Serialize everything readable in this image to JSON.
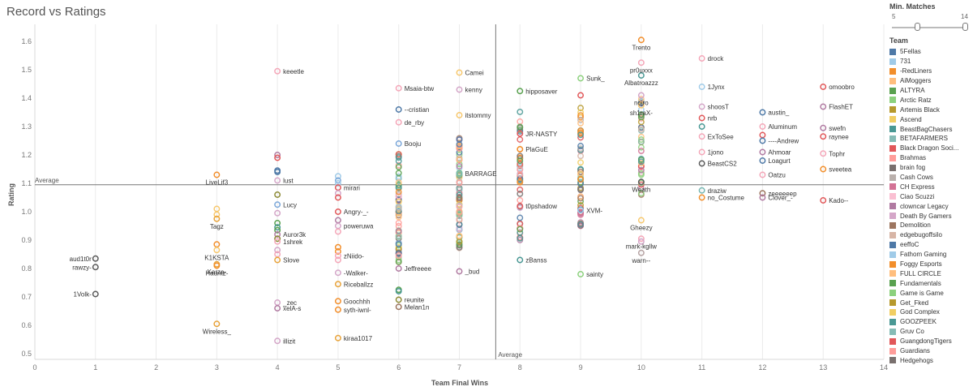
{
  "chart_data": {
    "type": "scatter",
    "title": "Record vs Ratings",
    "xlabel": "Team Final Wins",
    "ylabel": "Rating",
    "xlim": [
      0,
      14
    ],
    "ylim": [
      0.48,
      1.66
    ],
    "x_ticks": [
      "0",
      "1",
      "2",
      "3",
      "4",
      "5",
      "6",
      "7",
      "8",
      "9",
      "10",
      "11",
      "12",
      "13",
      "14"
    ],
    "y_ticks": [
      "0.5",
      "0.6",
      "0.7",
      "0.8",
      "0.9",
      "1.0",
      "1.1",
      "1.2",
      "1.3",
      "1.4",
      "1.5",
      "1.6"
    ],
    "reference_lines": [
      {
        "axis": "y",
        "value": 1.095,
        "label": "Average"
      },
      {
        "axis": "x",
        "value": 7.6,
        "label": "Average"
      }
    ],
    "grid": "vertical",
    "legend_position": "right",
    "labeled_points": [
      {
        "x": 1,
        "y": 0.835,
        "label": "aud1t0r",
        "color": "#5a5a5a"
      },
      {
        "x": 1,
        "y": 0.805,
        "label": "rawzy-",
        "color": "#5a5a5a"
      },
      {
        "x": 1,
        "y": 0.71,
        "label": "1Volk-",
        "color": "#5a5a5a"
      },
      {
        "x": 3,
        "y": 1.13,
        "label": "LiveLif3",
        "color": "#f28e2b"
      },
      {
        "x": 3,
        "y": 1.01,
        "label": "",
        "color": "#f7c86e"
      },
      {
        "x": 3,
        "y": 0.99,
        "label": "",
        "color": "#f7c86e"
      },
      {
        "x": 3,
        "y": 0.975,
        "label": "Tagz",
        "color": "#e8a33a"
      },
      {
        "x": 3,
        "y": 0.885,
        "label": "",
        "color": "#f28e2b"
      },
      {
        "x": 3,
        "y": 0.865,
        "label": "K1KSTA",
        "color": "#f7c86e"
      },
      {
        "x": 3,
        "y": 0.815,
        "label": "Karza-",
        "color": "#e8a33a"
      },
      {
        "x": 3,
        "y": 0.81,
        "label": "Hauntz-",
        "color": "#f28e2b"
      },
      {
        "x": 3,
        "y": 0.605,
        "label": "Wireless_",
        "color": "#e8a33a"
      },
      {
        "x": 4,
        "y": 1.495,
        "label": "keeetle",
        "color": "#f4a6b8"
      },
      {
        "x": 4,
        "y": 1.2,
        "label": "",
        "color": "#b07aa1"
      },
      {
        "x": 4,
        "y": 1.19,
        "label": "",
        "color": "#e15759"
      },
      {
        "x": 4,
        "y": 1.145,
        "label": "",
        "color": "#4e79a7"
      },
      {
        "x": 4,
        "y": 1.14,
        "label": "",
        "color": "#4e79a7"
      },
      {
        "x": 4,
        "y": 1.11,
        "label": "lust",
        "color": "#d4a6c8"
      },
      {
        "x": 4,
        "y": 1.06,
        "label": "",
        "color": "#8c8a35"
      },
      {
        "x": 4,
        "y": 1.025,
        "label": "Lucy",
        "color": "#7ba7d9"
      },
      {
        "x": 4,
        "y": 0.995,
        "label": "",
        "color": "#d4a6c8"
      },
      {
        "x": 4,
        "y": 0.96,
        "label": "",
        "color": "#59a14f"
      },
      {
        "x": 4,
        "y": 0.945,
        "label": "",
        "color": "#499894"
      },
      {
        "x": 4,
        "y": 0.935,
        "label": "",
        "color": "#59a14f"
      },
      {
        "x": 4,
        "y": 0.92,
        "label": "Auror3k",
        "color": "#b07aa1"
      },
      {
        "x": 4,
        "y": 0.905,
        "label": "",
        "color": "#8c8a35"
      },
      {
        "x": 4,
        "y": 0.895,
        "label": "1shrek",
        "color": "#f4a6b8"
      },
      {
        "x": 4,
        "y": 0.865,
        "label": "",
        "color": "#d4a6c8"
      },
      {
        "x": 4,
        "y": 0.85,
        "label": "",
        "color": "#f4a6b8"
      },
      {
        "x": 4,
        "y": 0.83,
        "label": "Slove",
        "color": "#e8a33a"
      },
      {
        "x": 4,
        "y": 0.68,
        "label": "_zec",
        "color": "#d4a6c8"
      },
      {
        "x": 4,
        "y": 0.66,
        "label": "xelA-s",
        "color": "#b07aa1"
      },
      {
        "x": 4,
        "y": 0.545,
        "label": "illizit",
        "color": "#d4a6c8"
      },
      {
        "x": 5,
        "y": 1.125,
        "label": "",
        "color": "#a0cbe8"
      },
      {
        "x": 5,
        "y": 1.11,
        "label": "",
        "color": "#7ba7d9"
      },
      {
        "x": 5,
        "y": 1.1,
        "label": "",
        "color": "#a0cbe8"
      },
      {
        "x": 5,
        "y": 1.085,
        "label": "mirari",
        "color": "#e15759"
      },
      {
        "x": 5,
        "y": 1.065,
        "label": "",
        "color": "#d4a6c8"
      },
      {
        "x": 5,
        "y": 1.05,
        "label": "",
        "color": "#e15759"
      },
      {
        "x": 5,
        "y": 1.0,
        "label": "Angry-_-",
        "color": "#e15759"
      },
      {
        "x": 5,
        "y": 0.97,
        "label": "",
        "color": "#b07aa1"
      },
      {
        "x": 5,
        "y": 0.95,
        "label": "poweruwa",
        "color": "#d4a6c8"
      },
      {
        "x": 5,
        "y": 0.93,
        "label": "",
        "color": "#f4a6b8"
      },
      {
        "x": 5,
        "y": 0.875,
        "label": "",
        "color": "#f28e2b"
      },
      {
        "x": 5,
        "y": 0.86,
        "label": "",
        "color": "#f28e2b"
      },
      {
        "x": 5,
        "y": 0.845,
        "label": "zNiido-",
        "color": "#f4a6b8"
      },
      {
        "x": 5,
        "y": 0.83,
        "label": "",
        "color": "#f4a6b8"
      },
      {
        "x": 5,
        "y": 0.785,
        "label": "-Walker-",
        "color": "#d4a6c8"
      },
      {
        "x": 5,
        "y": 0.745,
        "label": "Riceballzz",
        "color": "#e8a33a"
      },
      {
        "x": 5,
        "y": 0.685,
        "label": "Goochhh",
        "color": "#f28e2b"
      },
      {
        "x": 5,
        "y": 0.655,
        "label": "syth-iwnl-",
        "color": "#f28e2b"
      },
      {
        "x": 5,
        "y": 0.555,
        "label": "kiraa1017",
        "color": "#e8a33a"
      },
      {
        "x": 6,
        "y": 1.435,
        "label": "Msaia-btw",
        "color": "#f4a6b8"
      },
      {
        "x": 6,
        "y": 1.36,
        "label": "--cristian",
        "color": "#4e79a7"
      },
      {
        "x": 6,
        "y": 1.315,
        "label": "de_rby",
        "color": "#f4a6b8"
      },
      {
        "x": 6,
        "y": 1.24,
        "label": "Booju",
        "color": "#7ba7d9"
      },
      {
        "x": 6,
        "y": 0.8,
        "label": "Jeffreeee",
        "color": "#b07aa1"
      },
      {
        "x": 6,
        "y": 0.725,
        "label": "",
        "color": "#59a14f"
      },
      {
        "x": 6,
        "y": 0.72,
        "label": "",
        "color": "#499894"
      },
      {
        "x": 6,
        "y": 0.69,
        "label": "reunite",
        "color": "#8c8a35"
      },
      {
        "x": 6,
        "y": 0.665,
        "label": "Melan1n",
        "color": "#9c755f"
      },
      {
        "x": 7,
        "y": 1.49,
        "label": "Camei",
        "color": "#f7c86e"
      },
      {
        "x": 7,
        "y": 1.43,
        "label": "kenny",
        "color": "#d4a6c8"
      },
      {
        "x": 7,
        "y": 1.34,
        "label": "itstommy",
        "color": "#f7c86e"
      },
      {
        "x": 7,
        "y": 1.135,
        "label": "BARRAGE",
        "color": "#76b7b2"
      },
      {
        "x": 7,
        "y": 0.79,
        "label": "_bud",
        "color": "#b07aa1"
      },
      {
        "x": 8,
        "y": 1.425,
        "label": "hipposaver",
        "color": "#59a14f"
      },
      {
        "x": 8,
        "y": 1.275,
        "label": "JR-NASTY",
        "color": "#e15759"
      },
      {
        "x": 8,
        "y": 1.22,
        "label": "PlaGuE",
        "color": "#f28e2b"
      },
      {
        "x": 8,
        "y": 1.02,
        "label": "t0pshadow",
        "color": "#e15759"
      },
      {
        "x": 8,
        "y": 0.83,
        "label": "zBanss",
        "color": "#499894"
      },
      {
        "x": 9,
        "y": 1.47,
        "label": "Sunk_",
        "color": "#8cd17d"
      },
      {
        "x": 9,
        "y": 1.41,
        "label": "",
        "color": "#e15759"
      },
      {
        "x": 9,
        "y": 1.005,
        "label": "XVM-",
        "color": "#a0cbe8"
      },
      {
        "x": 9,
        "y": 0.78,
        "label": "sainty",
        "color": "#8cd17d"
      },
      {
        "x": 10,
        "y": 1.605,
        "label": "Trento",
        "color": "#f28e2b"
      },
      {
        "x": 10,
        "y": 1.525,
        "label": "pr0uxxx",
        "color": "#f4a6b8"
      },
      {
        "x": 10,
        "y": 1.48,
        "label": "Albatroazzz",
        "color": "#499894"
      },
      {
        "x": 10,
        "y": 1.41,
        "label": "nojro",
        "color": "#d4a6c8"
      },
      {
        "x": 10,
        "y": 1.375,
        "label": "sh1raX-",
        "color": "#f7c86e"
      },
      {
        "x": 10,
        "y": 1.105,
        "label": "Weath",
        "color": "#5a5a5a"
      },
      {
        "x": 10,
        "y": 0.97,
        "label": "Gheezy",
        "color": "#f7c86e"
      },
      {
        "x": 10,
        "y": 0.905,
        "label": "mark-kgllw",
        "color": "#f4a6b8"
      },
      {
        "x": 10,
        "y": 0.895,
        "label": "",
        "color": "#d4a6c8"
      },
      {
        "x": 10,
        "y": 0.855,
        "label": "warn--",
        "color": "#b6a3a3"
      },
      {
        "x": 11,
        "y": 1.54,
        "label": "drock",
        "color": "#f4a6b8"
      },
      {
        "x": 11,
        "y": 1.44,
        "label": "1Jynx",
        "color": "#a0cbe8"
      },
      {
        "x": 11,
        "y": 1.37,
        "label": "shoosT",
        "color": "#d4a6c8"
      },
      {
        "x": 11,
        "y": 1.33,
        "label": "nrb",
        "color": "#e15759"
      },
      {
        "x": 11,
        "y": 1.3,
        "label": "",
        "color": "#499894"
      },
      {
        "x": 11,
        "y": 1.265,
        "label": "ExToSee",
        "color": "#f4a6b8"
      },
      {
        "x": 11,
        "y": 1.21,
        "label": "1jono",
        "color": "#f4a6b8"
      },
      {
        "x": 11,
        "y": 1.17,
        "label": "BeastCS2",
        "color": "#5a5a5a"
      },
      {
        "x": 11,
        "y": 1.075,
        "label": "draziw",
        "color": "#76b7b2"
      },
      {
        "x": 11,
        "y": 1.05,
        "label": "no_Costume",
        "color": "#f28e2b"
      },
      {
        "x": 12,
        "y": 1.35,
        "label": "austin_",
        "color": "#4e79a7"
      },
      {
        "x": 12,
        "y": 1.3,
        "label": "Aluminum",
        "color": "#f4a6b8"
      },
      {
        "x": 12,
        "y": 1.27,
        "label": "",
        "color": "#e15759"
      },
      {
        "x": 12,
        "y": 1.25,
        "label": "----Andrew",
        "color": "#4e79a7"
      },
      {
        "x": 12,
        "y": 1.21,
        "label": "Ahmoar",
        "color": "#b07aa1"
      },
      {
        "x": 12,
        "y": 1.18,
        "label": "Loagurt",
        "color": "#4e79a7"
      },
      {
        "x": 12,
        "y": 1.13,
        "label": "Oatzu",
        "color": "#f4a6b8"
      },
      {
        "x": 12,
        "y": 1.065,
        "label": "zeeeeeep",
        "color": "#9c755f"
      },
      {
        "x": 12,
        "y": 1.05,
        "label": "Clover_-",
        "color": "#b07aa1"
      },
      {
        "x": 13,
        "y": 1.44,
        "label": "omoobro",
        "color": "#e15759"
      },
      {
        "x": 13,
        "y": 1.37,
        "label": "FlashET",
        "color": "#b07aa1"
      },
      {
        "x": 13,
        "y": 1.295,
        "label": "swefn",
        "color": "#b07aa1"
      },
      {
        "x": 13,
        "y": 1.265,
        "label": "raynee",
        "color": "#e15759"
      },
      {
        "x": 13,
        "y": 1.205,
        "label": "Tophr",
        "color": "#f4a6b8"
      },
      {
        "x": 13,
        "y": 1.15,
        "label": "sveetea",
        "color": "#f28e2b"
      },
      {
        "x": 13,
        "y": 1.04,
        "label": "Kado--",
        "color": "#e15759"
      }
    ]
  },
  "filter": {
    "title": "Min. Matches",
    "min_label": "5",
    "max_label": "14",
    "low_value": 8,
    "high_value": 14
  },
  "legend": {
    "title": "Team",
    "items": [
      {
        "name": "5Fellas",
        "color": "#4e79a7"
      },
      {
        "name": "731",
        "color": "#a0cbe8"
      },
      {
        "name": "-RedLiners",
        "color": "#f28e2b"
      },
      {
        "name": "AiMoggers",
        "color": "#ffbe7d"
      },
      {
        "name": "ALTYRA",
        "color": "#59a14f"
      },
      {
        "name": "Arctic Ratz",
        "color": "#8cd17d"
      },
      {
        "name": "Artemis Black",
        "color": "#b6992d"
      },
      {
        "name": "Ascend",
        "color": "#f1ce63"
      },
      {
        "name": "BeastBagChasers",
        "color": "#499894"
      },
      {
        "name": "BETAFARMERS",
        "color": "#86bcb6"
      },
      {
        "name": "Black Dragon Soci...",
        "color": "#e15759"
      },
      {
        "name": "Brahmas",
        "color": "#ff9d9a"
      },
      {
        "name": "brain fog",
        "color": "#79706e"
      },
      {
        "name": "Cash Cows",
        "color": "#bab0ac"
      },
      {
        "name": "CH Express",
        "color": "#d37295"
      },
      {
        "name": "Ciao Scuzzi",
        "color": "#fabfd2"
      },
      {
        "name": "clowncar Legacy",
        "color": "#b07aa1"
      },
      {
        "name": "Death By Gamers",
        "color": "#d4a6c8"
      },
      {
        "name": "Demolition",
        "color": "#9d7660"
      },
      {
        "name": "edgebugoffsilo",
        "color": "#d7b5a6"
      },
      {
        "name": "eeffoC",
        "color": "#4e79a7"
      },
      {
        "name": "Fathom Gaming",
        "color": "#a0cbe8"
      },
      {
        "name": "Foggy Esports",
        "color": "#f28e2b"
      },
      {
        "name": "FULL CIRCLE",
        "color": "#ffbe7d"
      },
      {
        "name": "Fundamentals",
        "color": "#59a14f"
      },
      {
        "name": "Game is Game",
        "color": "#8cd17d"
      },
      {
        "name": "Get_Fked",
        "color": "#b6992d"
      },
      {
        "name": "God Complex",
        "color": "#f1ce63"
      },
      {
        "name": "GOOZPEEK",
        "color": "#499894"
      },
      {
        "name": "Gruv Co",
        "color": "#86bcb6"
      },
      {
        "name": "GuangdongTigers",
        "color": "#e15759"
      },
      {
        "name": "Guardians",
        "color": "#ff9d9a"
      },
      {
        "name": "Hedgehogs",
        "color": "#79706e"
      }
    ]
  }
}
